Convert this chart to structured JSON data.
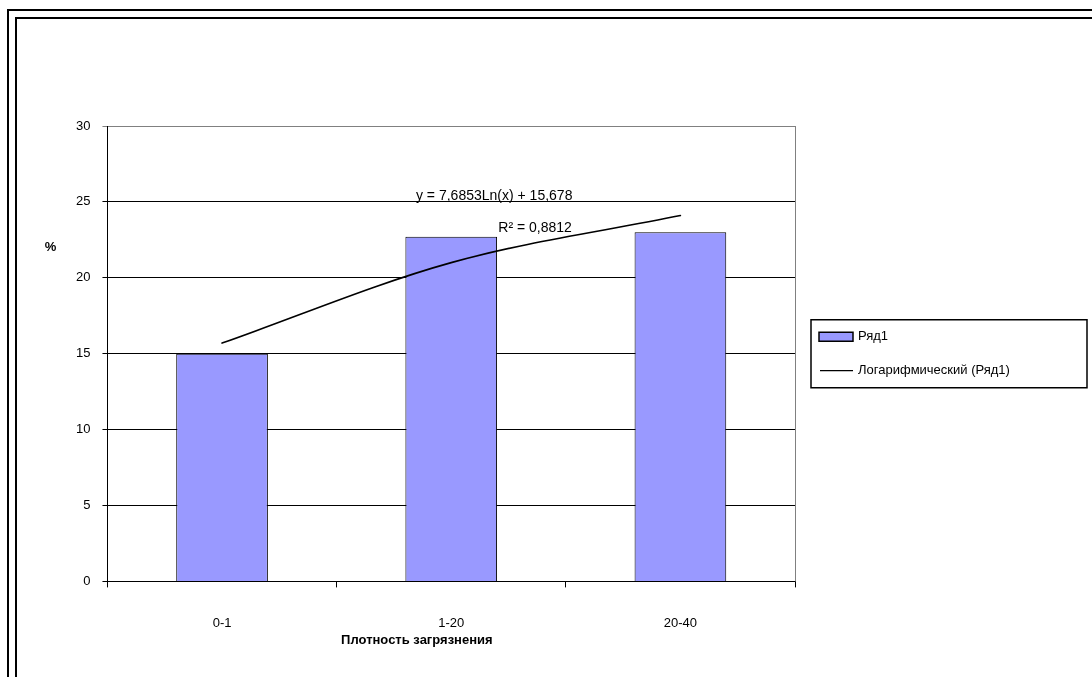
{
  "chart_data": {
    "type": "bar",
    "xlabel": "Плотность загрязнения",
    "ylabel": "%",
    "categories": [
      "0-1",
      "1-20",
      "20-40"
    ],
    "series": [
      {
        "name": "Ряд1",
        "color": "#9999ff",
        "values": [
          15,
          22.7,
          23
        ]
      },
      {
        "name": "Логарифмический (Ряд1)",
        "type": "line",
        "color": "#000000",
        "values": [
          15.7,
          21,
          24.1
        ]
      }
    ],
    "ylim": [
      0,
      30
    ],
    "yticks": [
      0,
      5,
      10,
      15,
      20,
      25,
      30
    ],
    "grid": "y",
    "legend": "right",
    "annotations": [
      "y = 7,6853Ln(x) + 15,678",
      "R² = 0,8812"
    ]
  }
}
